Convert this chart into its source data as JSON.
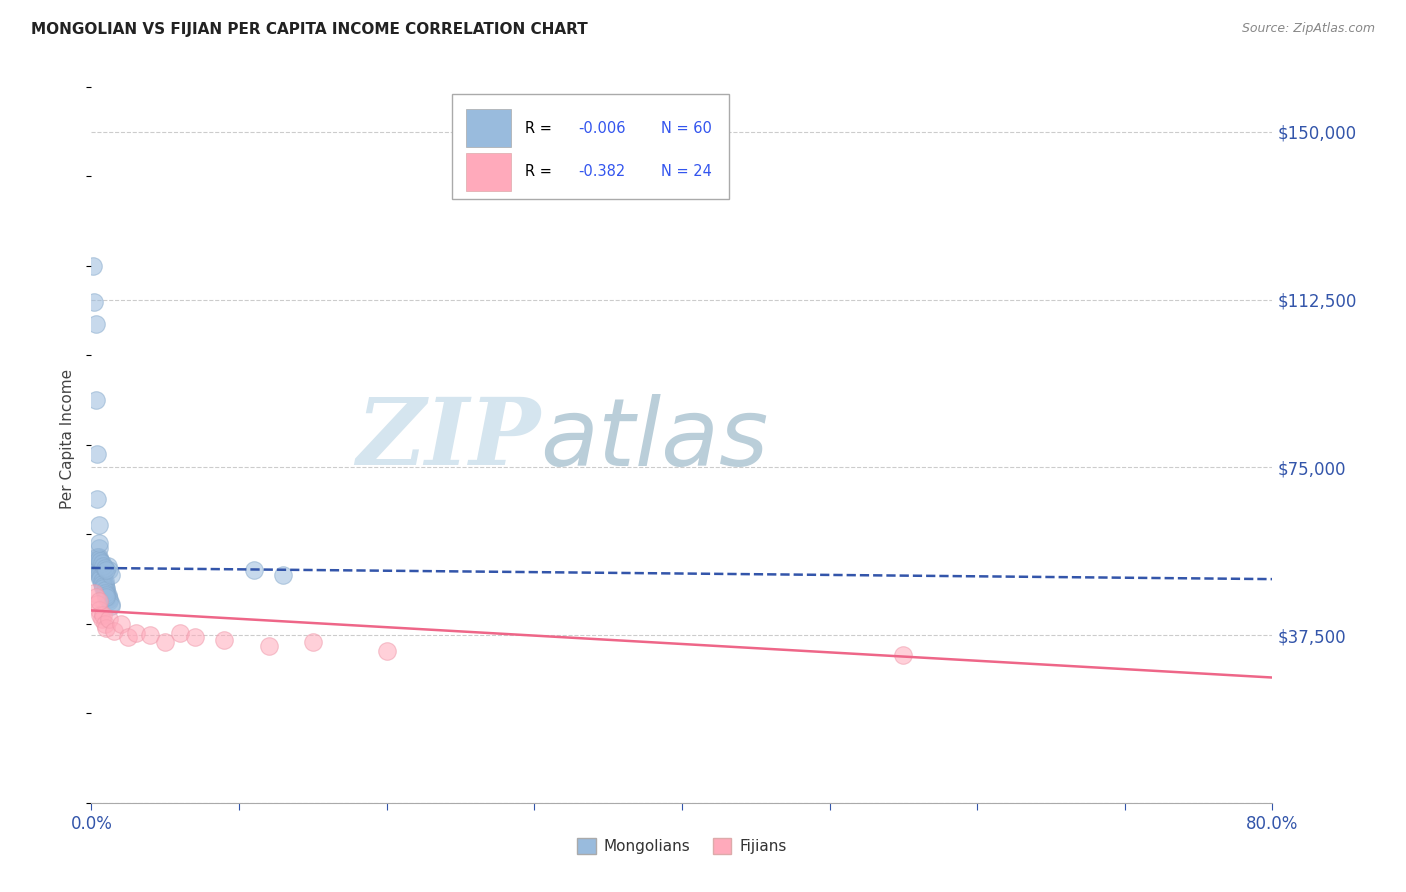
{
  "title": "MONGOLIAN VS FIJIAN PER CAPITA INCOME CORRELATION CHART",
  "source_text": "Source: ZipAtlas.com",
  "ylabel": "Per Capita Income",
  "y_ticks": [
    0,
    37500,
    75000,
    112500,
    150000
  ],
  "y_tick_labels": [
    "",
    "$37,500",
    "$75,000",
    "$112,500",
    "$150,000"
  ],
  "x_min": 0.0,
  "x_max": 0.8,
  "y_min": 0,
  "y_max": 162500,
  "mongolian_color": "#99BBDD",
  "mongolian_edge_color": "#88AACC",
  "fijian_color": "#FFAABB",
  "fijian_edge_color": "#EE99AA",
  "mongolian_line_color": "#3355AA",
  "fijian_line_color": "#EE6688",
  "background_color": "#ffffff",
  "grid_color": "#cccccc",
  "watermark_zip_color": "#D8E8F0",
  "watermark_atlas_color": "#C0D8F0",
  "r1_label": "R = ",
  "r1_val": "-0.006",
  "n1_label": "N = 60",
  "r2_label": "R = ",
  "r2_val": "-0.382",
  "n2_label": "N = 24",
  "legend_text_color": "#000000",
  "legend_val_color": "#3355EE",
  "legend_n_color": "#3355EE",
  "mongolian_x": [
    0.001,
    0.002,
    0.003,
    0.003,
    0.004,
    0.004,
    0.005,
    0.005,
    0.005,
    0.006,
    0.006,
    0.006,
    0.007,
    0.007,
    0.007,
    0.008,
    0.008,
    0.008,
    0.009,
    0.009,
    0.009,
    0.01,
    0.01,
    0.01,
    0.011,
    0.011,
    0.012,
    0.012,
    0.013,
    0.013,
    0.001,
    0.002,
    0.003,
    0.003,
    0.004,
    0.005,
    0.005,
    0.006,
    0.006,
    0.007,
    0.007,
    0.008,
    0.008,
    0.009,
    0.009,
    0.01,
    0.01,
    0.011,
    0.012,
    0.013,
    0.004,
    0.005,
    0.006,
    0.007,
    0.008,
    0.009,
    0.01,
    0.11,
    0.13,
    0.005
  ],
  "mongolian_y": [
    120000,
    112000,
    107000,
    90000,
    78000,
    68000,
    62000,
    57000,
    55000,
    54000,
    53500,
    53000,
    52500,
    52000,
    51500,
    51000,
    50500,
    50000,
    49500,
    49000,
    48500,
    48000,
    47500,
    47000,
    46500,
    46000,
    45500,
    45000,
    44500,
    44000,
    54000,
    53500,
    53000,
    52500,
    52000,
    51500,
    51000,
    50500,
    50000,
    49500,
    49000,
    48500,
    48000,
    47500,
    47000,
    46500,
    46000,
    53000,
    52000,
    51000,
    55000,
    54500,
    54000,
    53500,
    53000,
    52500,
    52000,
    52000,
    51000,
    58000
  ],
  "fijian_x": [
    0.002,
    0.003,
    0.004,
    0.005,
    0.006,
    0.007,
    0.008,
    0.009,
    0.01,
    0.012,
    0.015,
    0.02,
    0.025,
    0.03,
    0.04,
    0.05,
    0.06,
    0.07,
    0.09,
    0.12,
    0.15,
    0.2,
    0.55,
    0.005
  ],
  "fijian_y": [
    47000,
    46000,
    44500,
    43000,
    42000,
    41000,
    42000,
    40000,
    39000,
    41000,
    38500,
    40000,
    37000,
    38000,
    37500,
    36000,
    38000,
    37000,
    36500,
    35000,
    36000,
    34000,
    33000,
    45000
  ],
  "mong_trend_y0": 52500,
  "mong_trend_y1": 50000,
  "fiji_trend_y0": 43000,
  "fiji_trend_y1": 28000
}
